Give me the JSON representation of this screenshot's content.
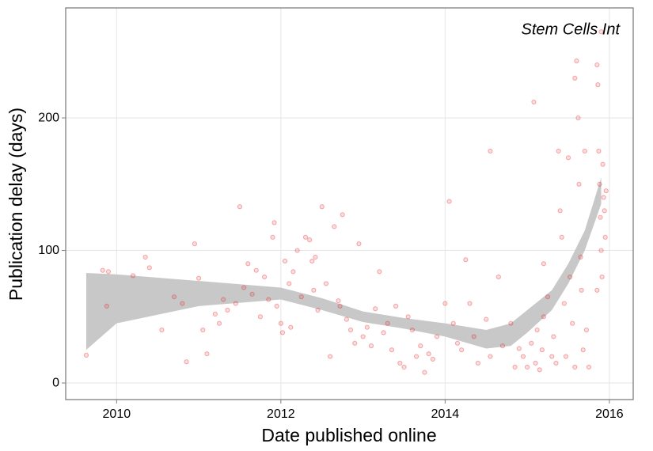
{
  "chart_data": {
    "type": "scatter",
    "annotation": "Stem Cells Int",
    "x_label": "Date published online",
    "y_label": "Publication delay (days)",
    "xlim": [
      2009.38,
      2016.29
    ],
    "ylim": [
      -12.5,
      283
    ],
    "xticks": [
      2010,
      2012,
      2014,
      2016
    ],
    "yticks": [
      0,
      100,
      200
    ],
    "grid": true,
    "series": [
      {
        "color": "#e41a1c",
        "x": [
          2009.63,
          2009.83,
          2009.9,
          2009.88,
          2010.2,
          2010.35,
          2010.4,
          2010.55,
          2010.7,
          2010.8,
          2010.85,
          2010.95,
          2011.0,
          2011.05,
          2011.1,
          2011.2,
          2011.25,
          2011.3,
          2011.35,
          2011.45,
          2011.5,
          2011.55,
          2011.6,
          2011.65,
          2011.7,
          2011.75,
          2011.8,
          2011.85,
          2011.9,
          2011.92,
          2011.95,
          2012.0,
          2012.02,
          2012.05,
          2012.1,
          2012.12,
          2012.15,
          2012.2,
          2012.25,
          2012.3,
          2012.35,
          2012.38,
          2012.4,
          2012.42,
          2012.45,
          2012.5,
          2012.55,
          2012.6,
          2012.65,
          2012.7,
          2012.72,
          2012.75,
          2012.8,
          2012.85,
          2012.9,
          2012.95,
          2013.0,
          2013.05,
          2013.1,
          2013.15,
          2013.2,
          2013.25,
          2013.3,
          2013.35,
          2013.4,
          2013.45,
          2013.5,
          2013.55,
          2013.6,
          2013.65,
          2013.7,
          2013.75,
          2013.8,
          2013.85,
          2013.9,
          2014.0,
          2014.05,
          2014.1,
          2014.15,
          2014.2,
          2014.25,
          2014.3,
          2014.35,
          2014.4,
          2014.5,
          2014.55,
          2014.55,
          2014.65,
          2014.7,
          2014.8,
          2014.85,
          2014.9,
          2014.95,
          2015.0,
          2015.05,
          2015.08,
          2015.1,
          2015.12,
          2015.15,
          2015.18,
          2015.2,
          2015.2,
          2015.25,
          2015.3,
          2015.32,
          2015.35,
          2015.38,
          2015.4,
          2015.42,
          2015.45,
          2015.47,
          2015.5,
          2015.52,
          2015.55,
          2015.58,
          2015.58,
          2015.6,
          2015.62,
          2015.63,
          2015.65,
          2015.66,
          2015.68,
          2015.7,
          2015.72,
          2015.75,
          2015.85,
          2015.86,
          2015.87,
          2015.88,
          2015.89,
          2015.9,
          2015.9,
          2015.91,
          2015.92,
          2015.93,
          2015.94,
          2015.95,
          2015.96,
          2015.85
        ],
        "values": [
          21,
          85,
          84,
          58,
          81,
          95,
          87,
          40,
          65,
          60,
          16,
          105,
          79,
          40,
          22,
          52,
          45,
          63,
          55,
          60,
          133,
          72,
          90,
          67,
          85,
          50,
          80,
          63,
          110,
          121,
          58,
          45,
          38,
          92,
          75,
          42,
          84,
          100,
          65,
          110,
          108,
          92,
          70,
          95,
          55,
          133,
          75,
          20,
          118,
          62,
          58,
          127,
          48,
          40,
          30,
          105,
          35,
          42,
          28,
          56,
          84,
          38,
          45,
          25,
          58,
          15,
          12,
          50,
          40,
          20,
          28,
          8,
          22,
          18,
          35,
          60,
          137,
          45,
          30,
          25,
          93,
          60,
          35,
          15,
          48,
          20,
          175,
          80,
          28,
          45,
          12,
          26,
          20,
          12,
          30,
          212,
          15,
          40,
          10,
          25,
          50,
          90,
          65,
          20,
          35,
          15,
          175,
          130,
          110,
          60,
          20,
          170,
          80,
          45,
          230,
          12,
          243,
          200,
          150,
          95,
          70,
          25,
          175,
          40,
          12,
          240,
          225,
          175,
          150,
          125,
          265,
          100,
          80,
          165,
          140,
          130,
          110,
          145,
          70
        ]
      }
    ],
    "ribbon": {
      "color": "#c8c8c8",
      "x": [
        2009.63,
        2010,
        2011,
        2012,
        2012.5,
        2013,
        2013.5,
        2014,
        2014.5,
        2014.8,
        2015,
        2015.3,
        2015.5,
        2015.7,
        2015.9
      ],
      "upper": [
        83,
        82,
        77,
        72,
        64,
        54,
        49,
        45,
        40,
        45,
        55,
        70,
        90,
        115,
        155
      ],
      "lower": [
        25,
        45,
        58,
        63,
        55,
        46,
        41,
        35,
        26,
        28,
        38,
        55,
        75,
        100,
        135
      ]
    }
  }
}
